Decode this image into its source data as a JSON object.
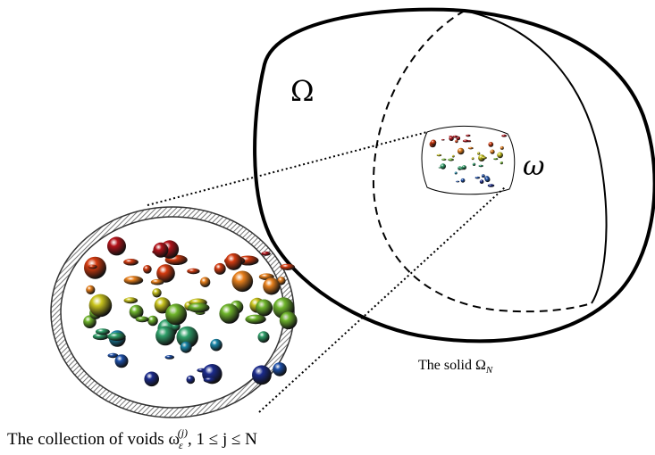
{
  "labels": {
    "domain_symbol": "Ω",
    "inclusion_symbol": "ω",
    "solid_caption_text": "The solid Ω",
    "solid_caption_sub": "N",
    "voids_caption_text": "The collection of voids ω",
    "voids_caption_sub": "ε",
    "voids_caption_sup": "(j)",
    "voids_caption_range": ", 1 ≤ j ≤ N"
  },
  "icons": {
    "zoom_lens": "magnifier-ring",
    "voids": "colored-spheres"
  },
  "colors": {
    "outline": "#000000",
    "ring": "#7a7a7a",
    "sphere_palette": [
      "#b3131a",
      "#d43b10",
      "#e8801c",
      "#c9c41e",
      "#6fb52c",
      "#2fa06a",
      "#1a86a8",
      "#1d4fa8",
      "#1a2a8c"
    ]
  }
}
